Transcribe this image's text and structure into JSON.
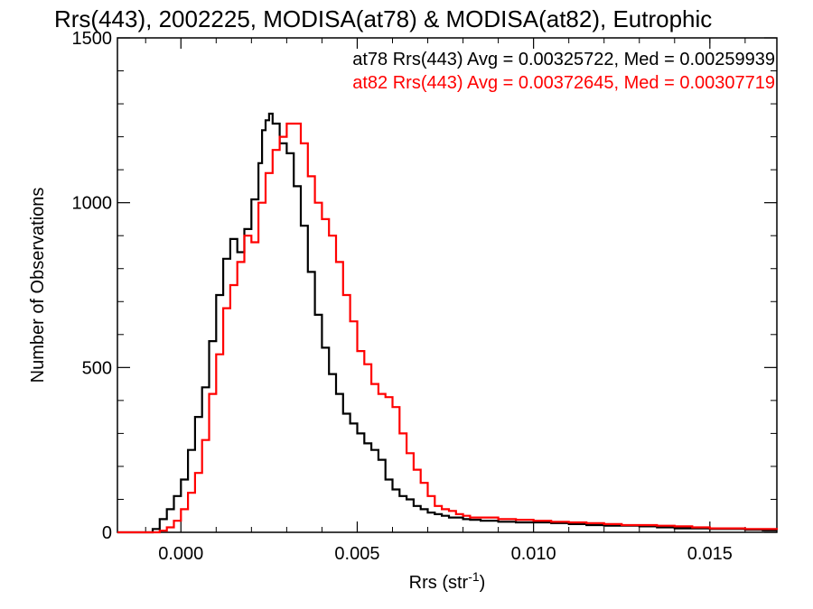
{
  "chart_data": {
    "type": "line",
    "title": "Rrs(443), 2002225, MODISA(at78) & MODISA(at82), Eutrophic",
    "xlabel_main": "Rrs (str",
    "xlabel_sup": "-1",
    "xlabel_close": ")",
    "ylabel": "Number of Observations",
    "xlim": [
      -0.0018,
      0.0169
    ],
    "ylim": [
      0,
      1500
    ],
    "x_ticks": [
      {
        "value": 0.0,
        "label": "0.000"
      },
      {
        "value": 0.005,
        "label": "0.005"
      },
      {
        "value": 0.01,
        "label": "0.010"
      },
      {
        "value": 0.015,
        "label": "0.015"
      }
    ],
    "y_ticks": [
      {
        "value": 0,
        "label": "0"
      },
      {
        "value": 500,
        "label": "500"
      },
      {
        "value": 1000,
        "label": "1000"
      },
      {
        "value": 1500,
        "label": "1500"
      }
    ],
    "legend": {
      "placement": "top-right",
      "entries": [
        {
          "text": "at78 Rrs(443) Avg = 0.00325722, Med = 0.00259939",
          "color": "#000000"
        },
        {
          "text": "at82 Rrs(443) Avg = 0.00372645, Med = 0.00307719",
          "color": "#ff0000"
        }
      ]
    },
    "series": [
      {
        "color": "#000000",
        "x": [
          -0.0018,
          -0.001,
          -0.0008,
          -0.0006,
          -0.0004,
          -0.0002,
          0.0,
          0.0002,
          0.0004,
          0.0006,
          0.0008,
          0.001,
          0.0012,
          0.0014,
          0.0016,
          0.0018,
          0.002,
          0.0022,
          0.0023,
          0.0024,
          0.0025,
          0.0026,
          0.0028,
          0.003,
          0.0032,
          0.0034,
          0.0036,
          0.0038,
          0.004,
          0.0042,
          0.0044,
          0.0046,
          0.0048,
          0.005,
          0.0052,
          0.0054,
          0.0056,
          0.0058,
          0.006,
          0.0062,
          0.0064,
          0.0066,
          0.0068,
          0.007,
          0.0072,
          0.0074,
          0.0076,
          0.0078,
          0.008,
          0.0082,
          0.0085,
          0.009,
          0.0095,
          0.01,
          0.0105,
          0.011,
          0.0115,
          0.012,
          0.0125,
          0.013,
          0.0135,
          0.014,
          0.0145,
          0.015,
          0.0155,
          0.016,
          0.0165,
          0.0169
        ],
        "y": [
          0,
          0,
          10,
          40,
          70,
          110,
          160,
          250,
          350,
          440,
          580,
          720,
          830,
          890,
          850,
          920,
          1010,
          1120,
          1220,
          1250,
          1270,
          1240,
          1180,
          1150,
          1050,
          930,
          790,
          660,
          560,
          480,
          420,
          360,
          330,
          300,
          270,
          250,
          220,
          160,
          130,
          110,
          100,
          80,
          70,
          60,
          55,
          50,
          45,
          45,
          40,
          38,
          35,
          32,
          30,
          30,
          28,
          25,
          22,
          20,
          20,
          18,
          15,
          12,
          12,
          10,
          10,
          8,
          6,
          6
        ]
      },
      {
        "color": "#ff0000",
        "x": [
          -0.0018,
          -0.001,
          -0.0008,
          -0.0006,
          -0.0004,
          -0.0002,
          0.0,
          0.0002,
          0.0004,
          0.0006,
          0.0008,
          0.001,
          0.0012,
          0.0014,
          0.0016,
          0.0018,
          0.002,
          0.0022,
          0.0024,
          0.0026,
          0.0028,
          0.003,
          0.0032,
          0.0034,
          0.0036,
          0.0038,
          0.004,
          0.0042,
          0.0044,
          0.0046,
          0.0048,
          0.005,
          0.0052,
          0.0054,
          0.0056,
          0.0058,
          0.006,
          0.0062,
          0.0064,
          0.0066,
          0.0068,
          0.007,
          0.0072,
          0.0074,
          0.0076,
          0.0078,
          0.008,
          0.0082,
          0.0085,
          0.009,
          0.0095,
          0.01,
          0.0105,
          0.011,
          0.0115,
          0.012,
          0.0125,
          0.013,
          0.0135,
          0.014,
          0.0145,
          0.015,
          0.0155,
          0.016,
          0.0165,
          0.0169
        ],
        "y": [
          0,
          0,
          0,
          5,
          15,
          35,
          70,
          120,
          180,
          280,
          420,
          540,
          680,
          750,
          820,
          900,
          880,
          1000,
          1090,
          1160,
          1200,
          1240,
          1240,
          1180,
          1080,
          1000,
          950,
          900,
          820,
          720,
          640,
          550,
          510,
          450,
          420,
          410,
          380,
          300,
          240,
          190,
          150,
          110,
          80,
          70,
          65,
          55,
          50,
          45,
          45,
          40,
          38,
          35,
          32,
          30,
          28,
          25,
          22,
          22,
          20,
          18,
          15,
          12,
          12,
          10,
          10,
          8
        ]
      }
    ]
  }
}
